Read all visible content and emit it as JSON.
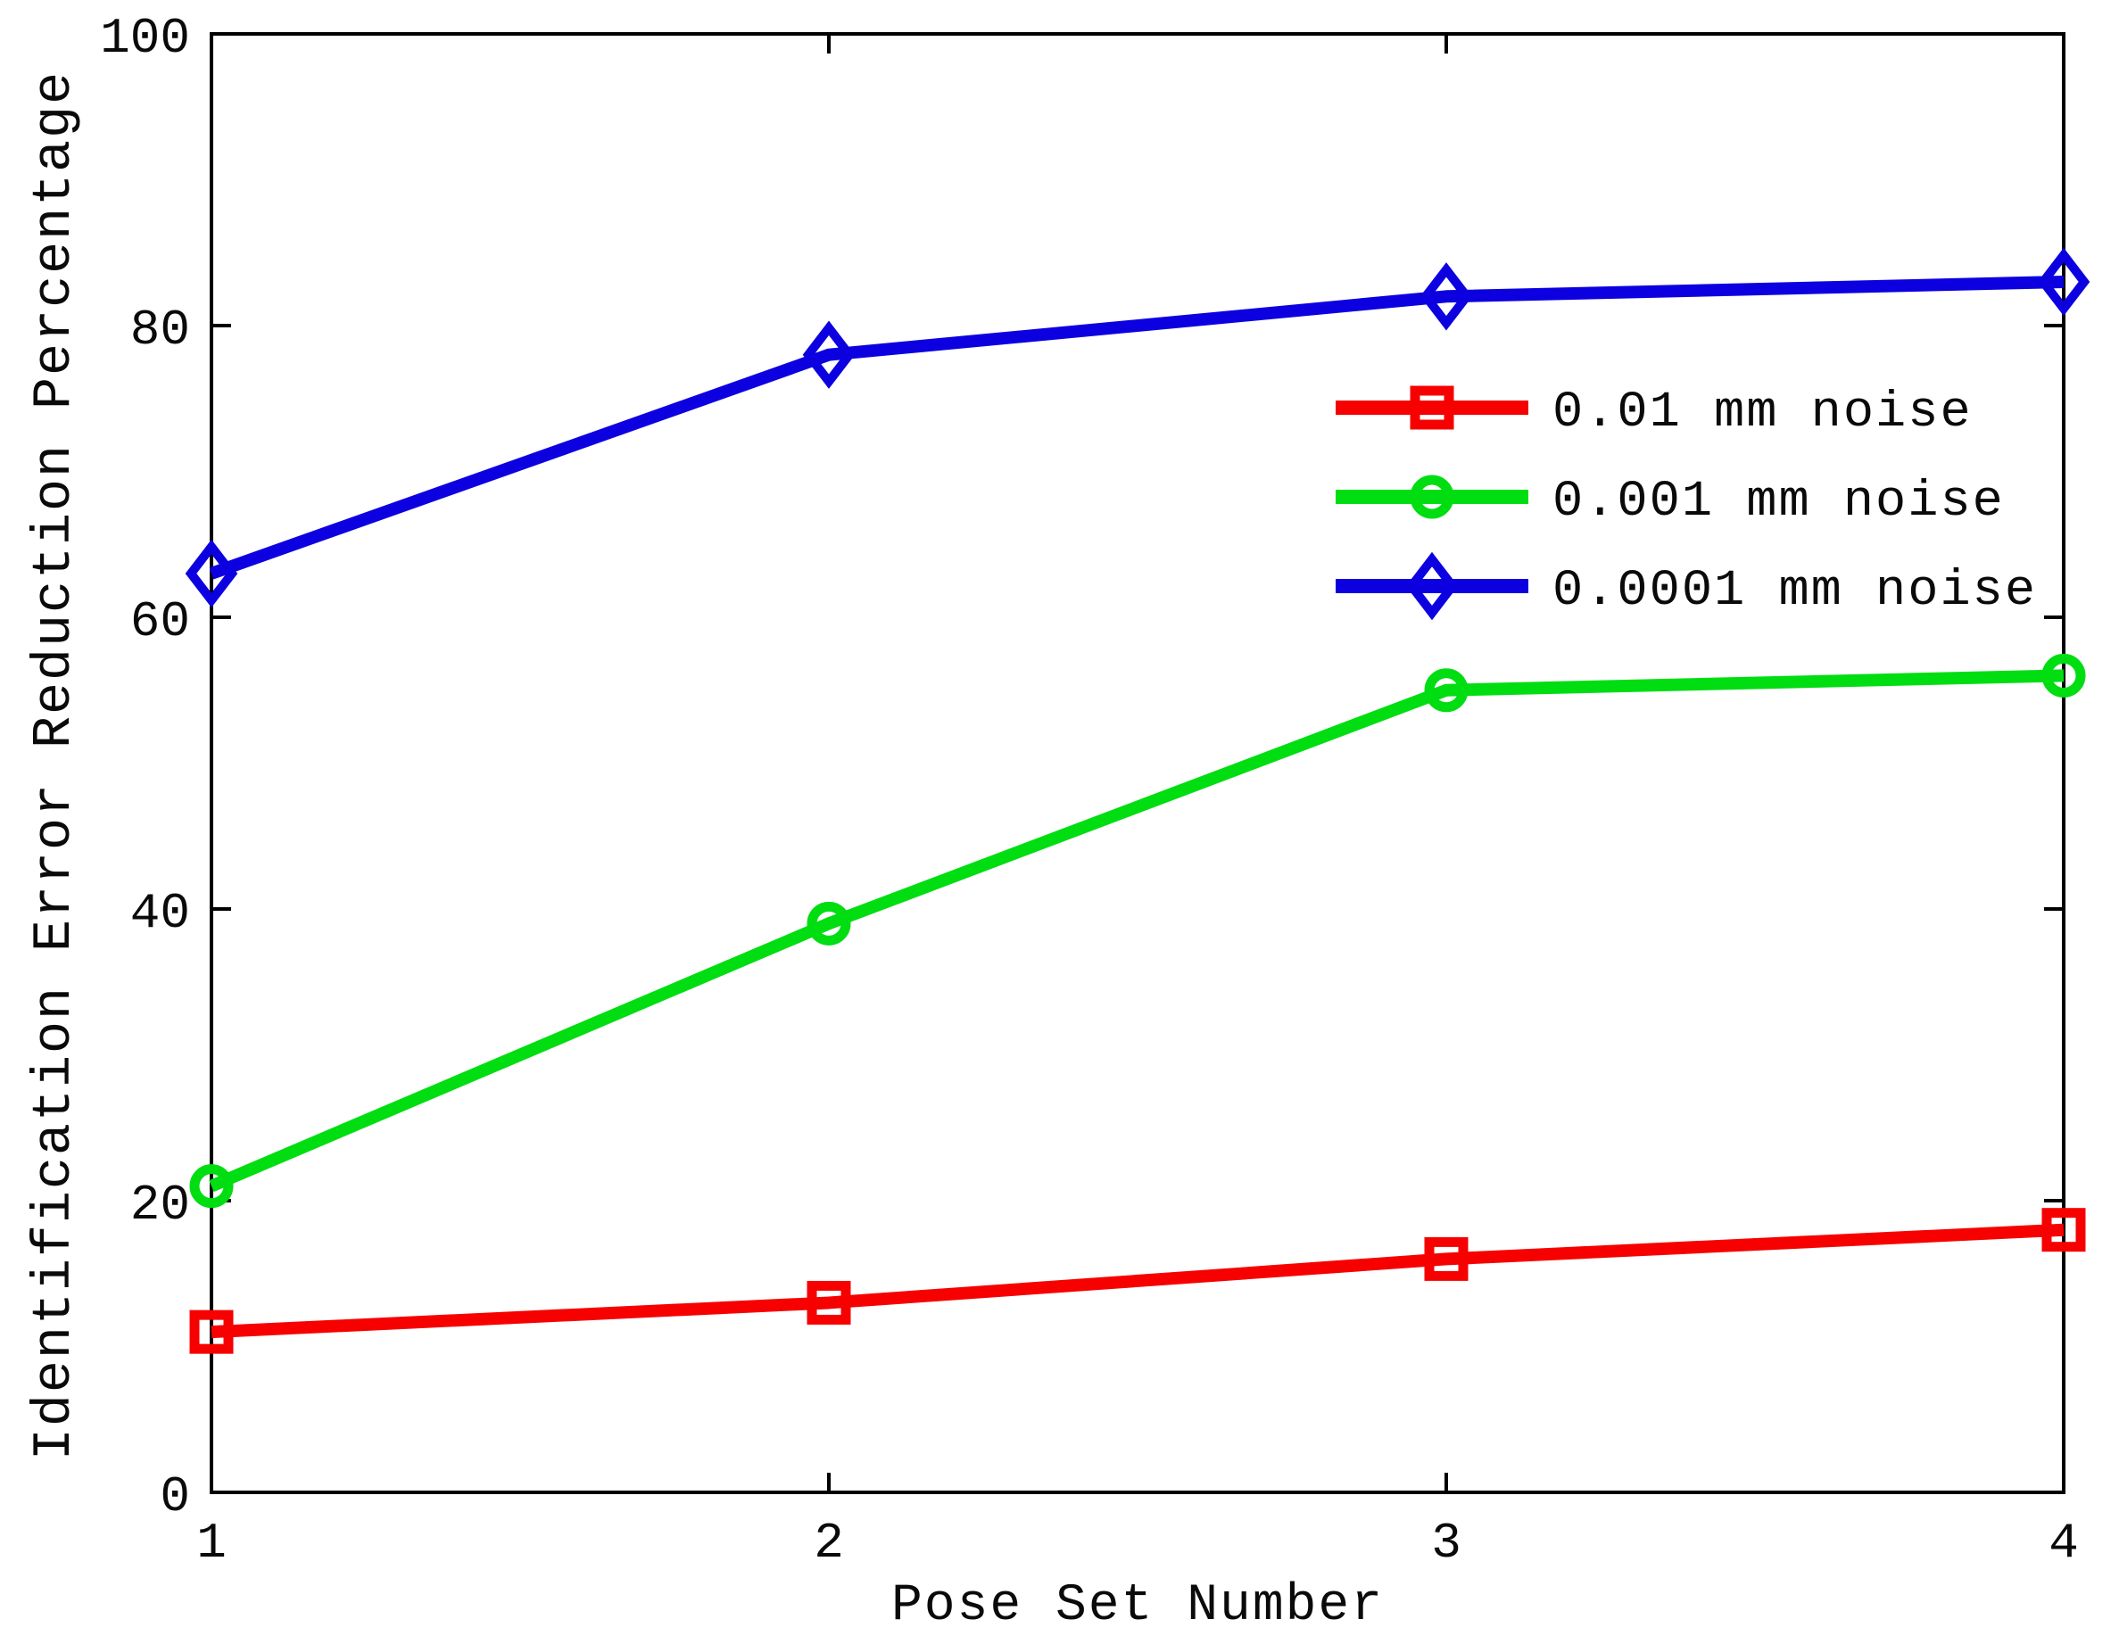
{
  "figure": {
    "background": "#ffffff",
    "axis_color": "#000000",
    "text_color": "#0a0a0a"
  },
  "chart_data": {
    "type": "line",
    "title": "",
    "xlabel": "Pose Set Number",
    "ylabel": "Identification Error Reduction Percentage",
    "x": [
      1,
      2,
      3,
      4
    ],
    "xlim": [
      1,
      4
    ],
    "ylim": [
      0,
      100
    ],
    "x_ticks": [
      "1",
      "2",
      "3",
      "4"
    ],
    "y_ticks": [
      "0",
      "20",
      "40",
      "60",
      "80",
      "100"
    ],
    "grid": false,
    "legend_position": "inside-upper-right",
    "legend_has_border": false,
    "series": [
      {
        "name": "0.01 mm noise",
        "color": "#f60000",
        "marker": "square",
        "values": [
          11,
          13,
          16,
          18
        ]
      },
      {
        "name": "0.001 mm noise",
        "color": "#00dd11",
        "marker": "circle",
        "values": [
          21,
          39,
          55,
          56
        ]
      },
      {
        "name": "0.0001 mm noise",
        "color": "#0c00e0",
        "marker": "diamond",
        "values": [
          63,
          78,
          82,
          83
        ]
      }
    ]
  }
}
